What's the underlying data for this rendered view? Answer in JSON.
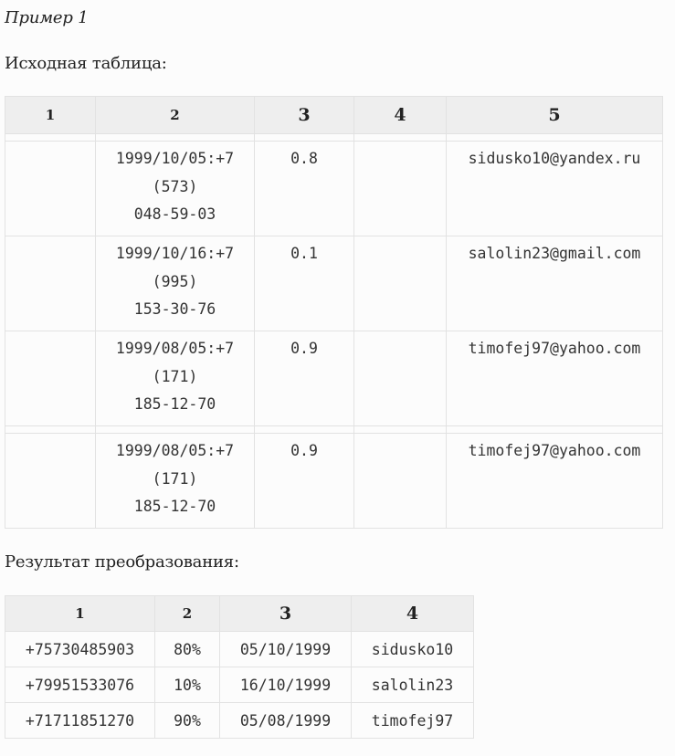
{
  "title": "Пример 1",
  "source_label": "Исходная таблица:",
  "result_label": "Результат преобразования:",
  "source_table": {
    "headers": [
      "1",
      "2",
      "3",
      "4",
      "5"
    ],
    "rows": [
      {
        "col1": "",
        "date_part": "1999/10/05:+7",
        "code_part": "(573)",
        "num_part": "048-59-03",
        "value": "0.8",
        "col4": "",
        "email": "sidusko10@yandex.ru"
      },
      {
        "col1": "",
        "date_part": "1999/10/16:+7",
        "code_part": "(995)",
        "num_part": "153-30-76",
        "value": "0.1",
        "col4": "",
        "email": "salolin23@gmail.com"
      },
      {
        "col1": "",
        "date_part": "1999/08/05:+7",
        "code_part": "(171)",
        "num_part": "185-12-70",
        "value": "0.9",
        "col4": "",
        "email": "timofej97@yahoo.com"
      },
      {
        "col1": "",
        "date_part": "1999/08/05:+7",
        "code_part": "(171)",
        "num_part": "185-12-70",
        "value": "0.9",
        "col4": "",
        "email": "timofej97@yahoo.com"
      }
    ]
  },
  "result_table": {
    "headers": [
      "1",
      "2",
      "3",
      "4"
    ],
    "rows": [
      {
        "phone": "+75730485903",
        "percent": "80%",
        "date": "05/10/1999",
        "login": "sidusko10"
      },
      {
        "phone": "+79951533076",
        "percent": "10%",
        "date": "16/10/1999",
        "login": "salolin23"
      },
      {
        "phone": "+71711851270",
        "percent": "90%",
        "date": "05/08/1999",
        "login": "timofej97"
      }
    ]
  }
}
